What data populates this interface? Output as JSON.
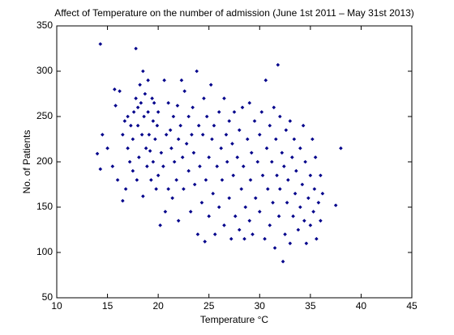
{
  "chart_data": {
    "type": "scatter",
    "title": "Affect of Temperature on the number of admission (June 1st 2011 – May 31st 2013)",
    "xlabel": "Temperature °C",
    "ylabel": "No. of Patients",
    "color": "#00008b",
    "grid": false,
    "xlim": [
      10,
      45
    ],
    "xticks": [
      10,
      15,
      20,
      25,
      30,
      35,
      40,
      45
    ],
    "ylim": [
      50,
      350
    ],
    "yticks": [
      50,
      100,
      150,
      200,
      250,
      300,
      350
    ],
    "x": [
      14.3,
      14.0,
      14.3,
      14.5,
      15.0,
      15.5,
      15.7,
      15.8,
      16.0,
      16.2,
      16.5,
      16.5,
      16.7,
      16.8,
      17.0,
      17.0,
      17.2,
      17.3,
      17.5,
      17.5,
      17.6,
      17.8,
      17.8,
      17.9,
      18.0,
      18.0,
      18.1,
      18.2,
      18.3,
      18.4,
      18.5,
      18.5,
      18.6,
      18.7,
      18.8,
      18.9,
      19.0,
      19.0,
      19.1,
      19.2,
      19.3,
      19.4,
      19.5,
      19.5,
      19.6,
      19.7,
      19.8,
      19.9,
      20.0,
      20.0,
      20.2,
      20.3,
      20.5,
      20.6,
      20.7,
      20.8,
      21.0,
      21.0,
      21.2,
      21.3,
      21.4,
      21.5,
      21.6,
      21.8,
      21.9,
      22.0,
      22.0,
      22.2,
      22.3,
      22.4,
      22.5,
      22.6,
      22.8,
      23.0,
      23.0,
      23.2,
      23.3,
      23.4,
      23.5,
      23.6,
      23.8,
      23.9,
      24.0,
      24.1,
      24.3,
      24.4,
      24.5,
      24.6,
      24.7,
      24.8,
      25.0,
      25.0,
      25.2,
      25.3,
      25.4,
      25.5,
      25.6,
      25.8,
      26.0,
      26.0,
      26.2,
      26.3,
      26.5,
      26.5,
      26.7,
      26.8,
      27.0,
      27.0,
      27.2,
      27.3,
      27.4,
      27.5,
      27.6,
      27.8,
      28.0,
      28.0,
      28.2,
      28.3,
      28.4,
      28.5,
      28.6,
      28.8,
      29.0,
      29.0,
      29.1,
      29.2,
      29.3,
      29.5,
      29.6,
      29.8,
      30.0,
      30.0,
      30.2,
      30.3,
      30.5,
      30.6,
      30.7,
      30.8,
      31.0,
      31.0,
      31.2,
      31.3,
      31.4,
      31.5,
      31.6,
      31.7,
      31.8,
      31.9,
      32.0,
      32.0,
      32.2,
      32.3,
      32.4,
      32.5,
      32.6,
      32.7,
      32.8,
      33.0,
      33.0,
      33.2,
      33.3,
      33.4,
      33.5,
      33.6,
      33.8,
      34.0,
      34.0,
      34.2,
      34.3,
      34.4,
      34.5,
      34.6,
      34.8,
      35.0,
      35.0,
      35.2,
      35.3,
      35.4,
      35.5,
      35.6,
      35.8,
      36.0,
      36.0,
      36.2,
      37.5,
      38.0
    ],
    "values": [
      330,
      209,
      192,
      230,
      215,
      195,
      280,
      262,
      180,
      278,
      157,
      230,
      245,
      170,
      250,
      215,
      200,
      240,
      190,
      225,
      255,
      325,
      270,
      180,
      260,
      240,
      205,
      285,
      265,
      230,
      162,
      300,
      250,
      275,
      215,
      195,
      290,
      255,
      230,
      212,
      180,
      270,
      245,
      200,
      265,
      225,
      170,
      240,
      185,
      255,
      130,
      210,
      195,
      290,
      145,
      230,
      265,
      170,
      235,
      215,
      160,
      250,
      200,
      180,
      262,
      225,
      135,
      240,
      290,
      205,
      170,
      278,
      220,
      250,
      190,
      145,
      230,
      260,
      210,
      175,
      300,
      120,
      240,
      195,
      155,
      230,
      270,
      112,
      180,
      250,
      205,
      140,
      285,
      225,
      165,
      240,
      120,
      195,
      255,
      150,
      215,
      180,
      270,
      130,
      230,
      200,
      245,
      160,
      115,
      220,
      185,
      255,
      140,
      205,
      235,
      125,
      170,
      260,
      195,
      115,
      150,
      225,
      265,
      135,
      180,
      210,
      120,
      245,
      160,
      200,
      230,
      145,
      255,
      185,
      115,
      290,
      215,
      170,
      240,
      130,
      200,
      155,
      260,
      105,
      225,
      185,
      307,
      140,
      250,
      170,
      210,
      90,
      195,
      120,
      235,
      155,
      180,
      245,
      110,
      205,
      140,
      225,
      165,
      190,
      125,
      215,
      150,
      175,
      240,
      135,
      200,
      110,
      160,
      185,
      130,
      225,
      145,
      170,
      205,
      115,
      155,
      185,
      135,
      165,
      152,
      215
    ]
  }
}
